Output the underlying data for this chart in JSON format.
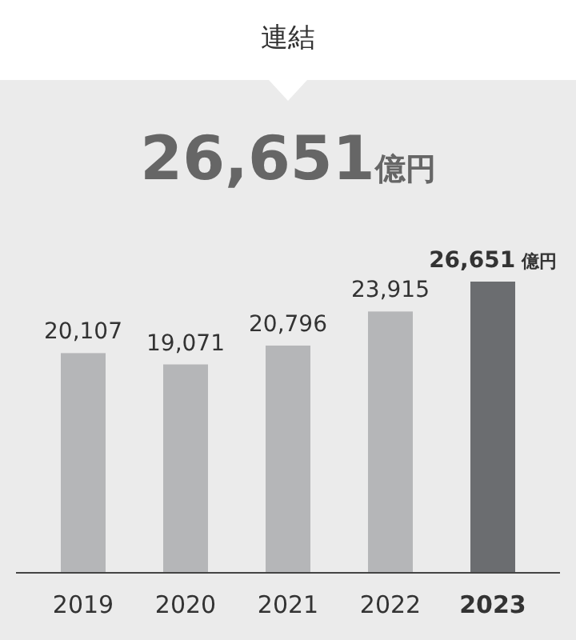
{
  "chart_data": {
    "type": "bar",
    "title": "連結",
    "subtitle": "26,651億円",
    "categories": [
      "2019",
      "2020",
      "2021",
      "2022",
      "2023"
    ],
    "values": [
      20107,
      19071,
      20796,
      23915,
      26651
    ],
    "colors": [
      "#b5b6b8",
      "#b5b6b8",
      "#b5b6b8",
      "#b5b6b8",
      "#6b6d70"
    ],
    "value_labels": [
      "20,107",
      "19,071",
      "20,796",
      "23,915",
      "26,651 億円"
    ]
  }
}
